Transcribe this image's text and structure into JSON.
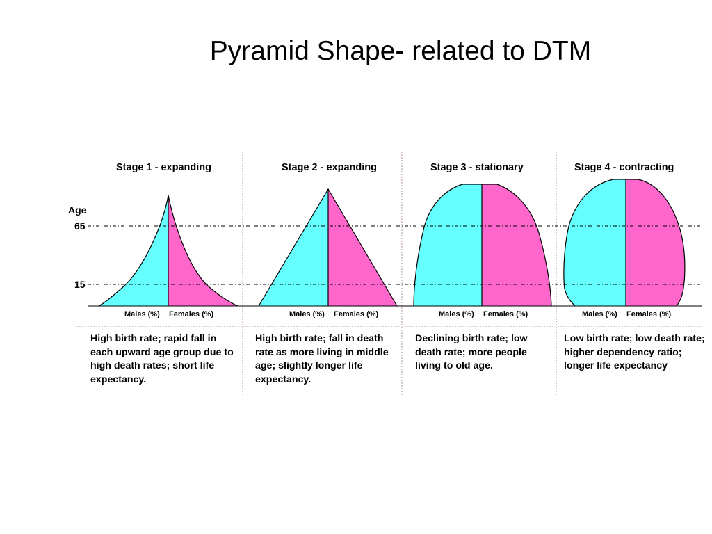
{
  "title": "Pyramid Shape- related to DTM",
  "axis": {
    "label": "Age",
    "ticks": [
      "65",
      "15"
    ]
  },
  "colors": {
    "males": "#66ffff",
    "females": "#ff66cc",
    "outline": "#000000"
  },
  "stages": [
    {
      "title": "Stage 1 - expanding",
      "males_label": "Males (%)",
      "females_label": "Females (%)",
      "description": "High birth rate; rapid fall in each upward age group due to high death rates; short life expectancy."
    },
    {
      "title": "Stage 2 - expanding",
      "males_label": "Males (%)",
      "females_label": "Females (%)",
      "description": "High birth rate; fall in death rate as more living in middle age; slightly longer life expectancy."
    },
    {
      "title": "Stage 3 - stationary",
      "males_label": "Males (%)",
      "females_label": "Females (%)",
      "description": "Declining birth rate; low death rate; more people living to old age."
    },
    {
      "title": "Stage 4 - contracting",
      "males_label": "Males (%)",
      "females_label": "Females (%)",
      "description": "Low birth rate; low death rate; higher dependency ratio; longer life expectancy"
    }
  ]
}
